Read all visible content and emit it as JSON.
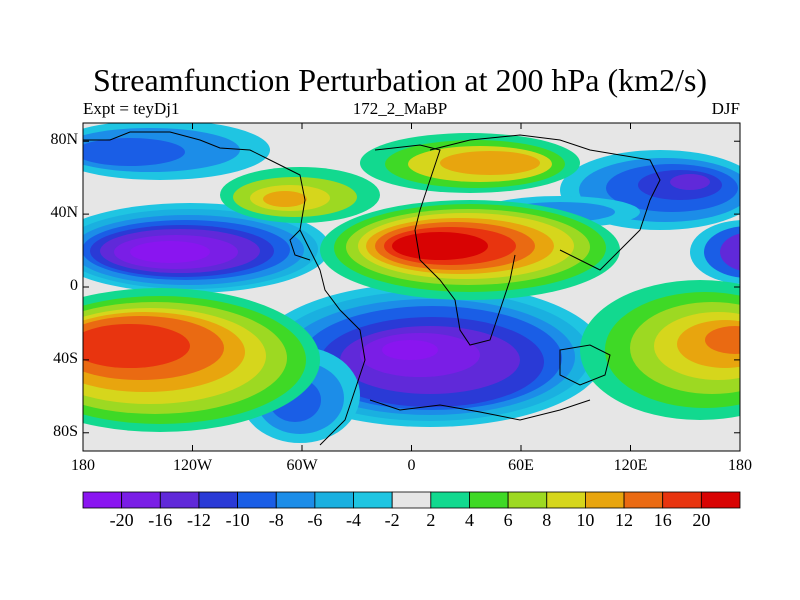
{
  "title": "Streamfunction Perturbation at 200 hPa (km2/s)",
  "left_string": "Expt = teyDj1",
  "center_string": "172_2_MaBP",
  "right_string": "DJF",
  "lat_ticks": [
    "80N",
    "40N",
    "0",
    "40S",
    "80S"
  ],
  "lon_ticks": [
    "180",
    "120W",
    "60W",
    "0",
    "60E",
    "120E",
    "180"
  ],
  "colorbar": {
    "labels": [
      "-20",
      "-16",
      "-12",
      "-10",
      "-8",
      "-6",
      "-4",
      "-2",
      "2",
      "4",
      "6",
      "8",
      "10",
      "12",
      "16",
      "20"
    ],
    "colors": [
      "#8a15f0",
      "#7a1ee6",
      "#6029d9",
      "#2a3ad6",
      "#1a5ee6",
      "#1c8de8",
      "#1ab0e0",
      "#1fc5e2",
      "#e6e6e6",
      "#12d98f",
      "#3fd926",
      "#9dd922",
      "#d6d61c",
      "#e8a50e",
      "#ea6a12",
      "#e8340f",
      "#d80303"
    ]
  }
}
